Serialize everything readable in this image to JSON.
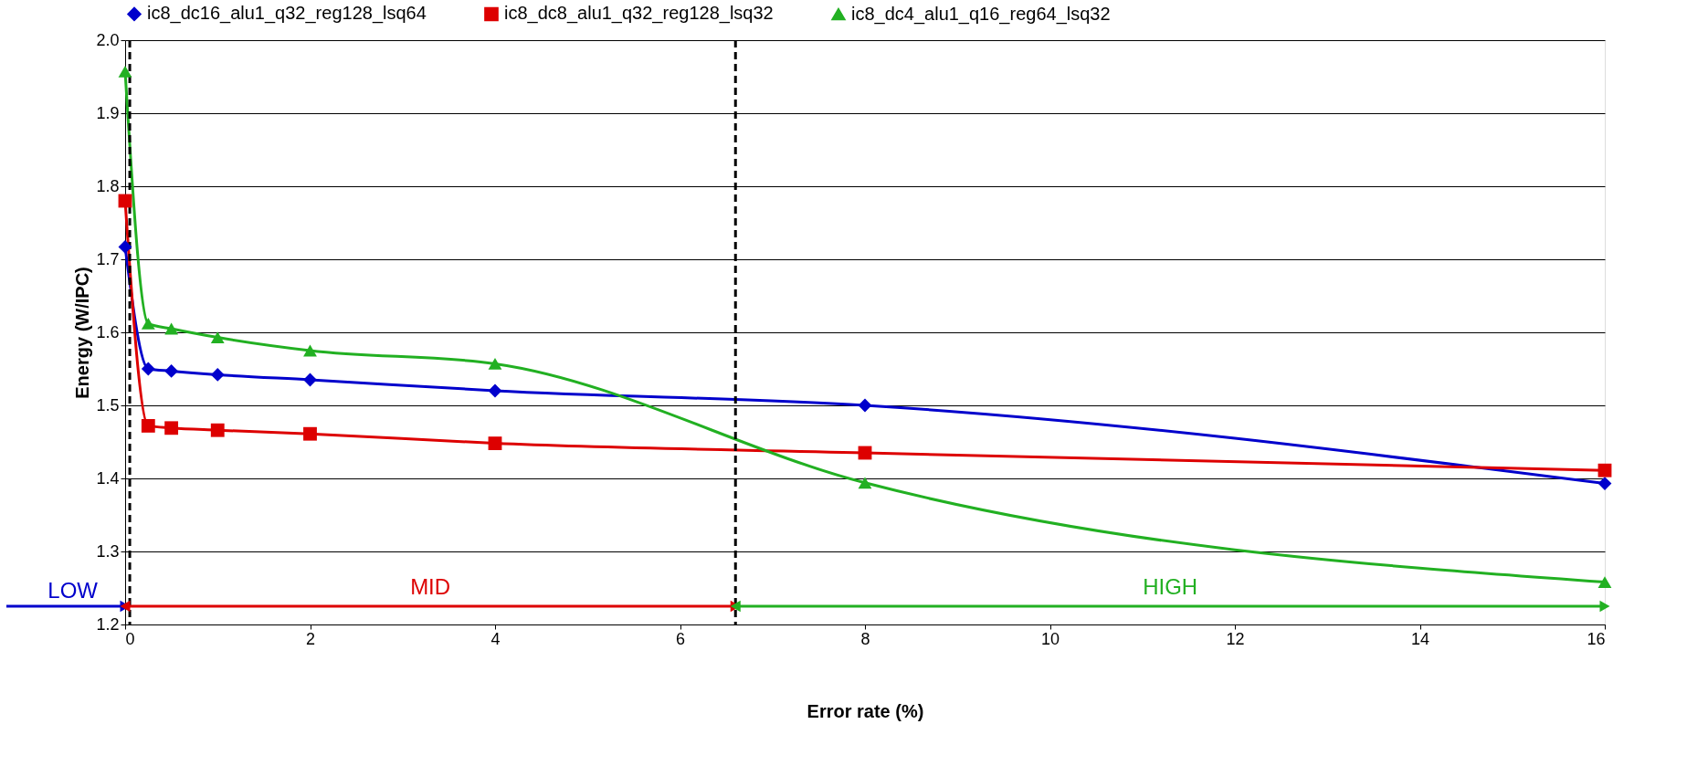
{
  "chart_data": {
    "type": "line",
    "xlabel": "Error rate (%)",
    "ylabel": "Energy (W/IPC)",
    "xlim": [
      0,
      16
    ],
    "xticks": [
      0,
      2,
      4,
      6,
      8,
      10,
      12,
      14,
      16
    ],
    "ylim": [
      1.2,
      2.0
    ],
    "yticks": [
      1.2,
      1.3,
      1.4,
      1.5,
      1.6,
      1.7,
      1.8,
      1.9,
      {
        "value": 2,
        "label": "2.0"
      }
    ],
    "grid": "y",
    "legend": "top",
    "line_style": "solid",
    "x": [
      0,
      0.25,
      0.5,
      1,
      2,
      4,
      8,
      16
    ],
    "series": [
      {
        "name": "ic8_dc16_alu1_q32_reg128_lsq64",
        "color": "#0000cc",
        "marker": "diamond",
        "values": [
          1.717,
          1.55,
          1.547,
          1.542,
          1.535,
          1.52,
          1.5,
          1.393
        ]
      },
      {
        "name": "ic8_dc8_alu1_q32_reg128_lsq32",
        "color": "#dd0000",
        "marker": "square",
        "values": [
          1.78,
          1.472,
          1.469,
          1.466,
          1.461,
          1.448,
          1.435,
          1.411
        ]
      },
      {
        "name": "ic8_dc4_alu1_q16_reg64_lsq32",
        "color": "#22b022",
        "marker": "triangle",
        "values": [
          1.957,
          1.612,
          1.605,
          1.593,
          1.575,
          1.557,
          1.394,
          1.258
        ]
      }
    ],
    "ref_lines": [
      {
        "axis": "x",
        "value": 0.05,
        "color": "#000000",
        "line_style": "dashed"
      },
      {
        "axis": "x",
        "value": 6.6,
        "color": "#000000",
        "line_style": "dashed"
      }
    ],
    "annotations": [
      "LOW",
      "MID",
      "HIGH"
    ]
  }
}
